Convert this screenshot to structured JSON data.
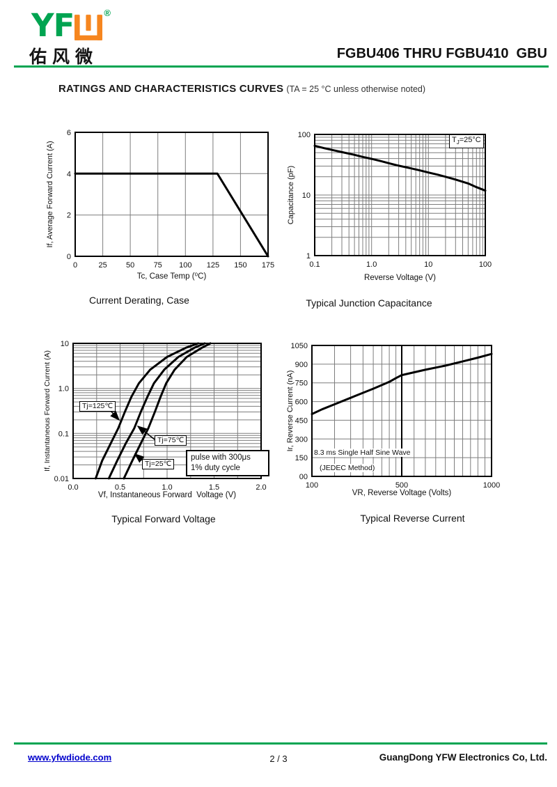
{
  "header": {
    "logo_letters": "YF",
    "registered": "®",
    "company_cn": "佑风微",
    "title": "FGBU406 THRU FGBU410  GBU"
  },
  "section": {
    "heading": "RATINGS AND CHARACTERISTICS CURVES",
    "condition": "(TA = 25 °C unless otherwise noted)"
  },
  "colors": {
    "brand_green": "#00A451",
    "brand_orange": "#F6861F",
    "link_blue": "#0000CC",
    "ink": "#111111",
    "grid": "#7d7d7d"
  },
  "chart_data": [
    {
      "type": "line",
      "title": "Current Derating, Case",
      "xlabel": "Tc, Case Temp (⁰C)",
      "ylabel": "If, Average Forward Current (A)",
      "xscale": "linear",
      "yscale": "linear",
      "xlim": [
        0,
        175
      ],
      "ylim": [
        0,
        6
      ],
      "xticks": [
        {
          "v": 0,
          "l": "0"
        },
        {
          "v": 25,
          "l": "25"
        },
        {
          "v": 50,
          "l": "50"
        },
        {
          "v": 75,
          "l": "75"
        },
        {
          "v": 100,
          "l": "100"
        },
        {
          "v": 125,
          "l": "125"
        },
        {
          "v": 150,
          "l": "150"
        },
        {
          "v": 175,
          "l": "175"
        }
      ],
      "yticks": [
        {
          "v": 0,
          "l": "0"
        },
        {
          "v": 2,
          "l": "2"
        },
        {
          "v": 4,
          "l": "4"
        },
        {
          "v": 6,
          "l": "6"
        }
      ],
      "series": [
        {
          "name": "If max vs Tc",
          "points": [
            [
              0,
              4
            ],
            [
              129,
              4
            ],
            [
              175,
              0
            ]
          ]
        }
      ]
    },
    {
      "type": "line",
      "title": "Typical Junction Capacitance",
      "xlabel": "Reverse Voltage (V)",
      "ylabel": "Capacitance (pF)",
      "xscale": "log",
      "yscale": "log",
      "xlim": [
        0.1,
        100
      ],
      "ylim": [
        1,
        100
      ],
      "legend": {
        "t": "T",
        "sub": "J",
        "rest": "=25°C"
      },
      "xticks": [
        {
          "v": 0.1,
          "l": "0.1"
        },
        {
          "v": 1,
          "l": "1.0"
        },
        {
          "v": 10,
          "l": "10"
        },
        {
          "v": 100,
          "l": "100"
        }
      ],
      "yticks": [
        {
          "v": 1,
          "l": "1"
        },
        {
          "v": 10,
          "l": "10"
        },
        {
          "v": 100,
          "l": "100"
        }
      ],
      "series": [
        {
          "name": "Cj vs VR",
          "points": [
            [
              0.1,
              65
            ],
            [
              0.15,
              59
            ],
            [
              0.2,
              55.5
            ],
            [
              0.3,
              51
            ],
            [
              0.5,
              46
            ],
            [
              0.7,
              42.5
            ],
            [
              1,
              39.5
            ],
            [
              1.5,
              36
            ],
            [
              2,
              33.5
            ],
            [
              3,
              30.5
            ],
            [
              5,
              27.5
            ],
            [
              7,
              25.5
            ],
            [
              10,
              23.5
            ],
            [
              15,
              21.5
            ],
            [
              20,
              20
            ],
            [
              30,
              18
            ],
            [
              50,
              15.5
            ],
            [
              70,
              13.5
            ],
            [
              100,
              11.8
            ]
          ]
        }
      ]
    },
    {
      "type": "line",
      "title": "Typical Forward Voltage",
      "xlabel": "Vf, Instantaneous Forward  Voltage (V)",
      "ylabel": "If, Instantaneous Forward Current (A)",
      "xscale": "linear",
      "yscale": "log",
      "xlim": [
        0,
        2
      ],
      "ylim": [
        0.01,
        10
      ],
      "curve_labels": [
        "Tj=125℃",
        "Tj=75℃",
        "Tj=25℃"
      ],
      "note_lines": [
        "pulse with 300μs",
        "1% duty cycle"
      ],
      "xticks": [
        {
          "v": 0,
          "l": "0.0"
        },
        {
          "v": 0.5,
          "l": "0.5"
        },
        {
          "v": 1,
          "l": "1.0"
        },
        {
          "v": 1.5,
          "l": "1.5"
        },
        {
          "v": 2,
          "l": "2.0"
        }
      ],
      "yticks": [
        {
          "v": 0.01,
          "l": "0.01"
        },
        {
          "v": 0.1,
          "l": "0.1"
        },
        {
          "v": 1,
          "l": "1.0"
        },
        {
          "v": 10,
          "l": "10"
        }
      ],
      "series": [
        {
          "name": "Tj=125℃",
          "points": [
            [
              0.24,
              0.01
            ],
            [
              0.31,
              0.025
            ],
            [
              0.4,
              0.06
            ],
            [
              0.48,
              0.13
            ],
            [
              0.55,
              0.3
            ],
            [
              0.62,
              0.65
            ],
            [
              0.7,
              1.3
            ],
            [
              0.82,
              2.6
            ],
            [
              1.0,
              5
            ],
            [
              1.2,
              8
            ],
            [
              1.33,
              10
            ]
          ]
        },
        {
          "name": "Tj=75℃",
          "points": [
            [
              0.38,
              0.01
            ],
            [
              0.47,
              0.025
            ],
            [
              0.56,
              0.06
            ],
            [
              0.65,
              0.13
            ],
            [
              0.72,
              0.3
            ],
            [
              0.79,
              0.65
            ],
            [
              0.86,
              1.3
            ],
            [
              0.97,
              2.6
            ],
            [
              1.12,
              5
            ],
            [
              1.29,
              8
            ],
            [
              1.4,
              10
            ]
          ]
        },
        {
          "name": "Tj=25℃",
          "points": [
            [
              0.54,
              0.01
            ],
            [
              0.63,
              0.025
            ],
            [
              0.72,
              0.06
            ],
            [
              0.8,
              0.13
            ],
            [
              0.87,
              0.3
            ],
            [
              0.93,
              0.65
            ],
            [
              0.99,
              1.3
            ],
            [
              1.08,
              2.6
            ],
            [
              1.21,
              5
            ],
            [
              1.37,
              8
            ],
            [
              1.46,
              10
            ]
          ]
        }
      ]
    },
    {
      "type": "line",
      "title": "Typical Reverse Current",
      "xlabel": "VR, Reverse Voltage (Volts)",
      "ylabel": "Ir, Reverse Current (nA)",
      "xscale": "log-segmented",
      "yscale": "linear",
      "xlim": [
        100,
        1000
      ],
      "ylim": [
        0,
        1050
      ],
      "note_lines": [
        "8.3 ms Single Half Sine Wave",
        "(JEDEC Method)"
      ],
      "xticks": [
        {
          "v": 100,
          "l": "100"
        },
        {
          "v": 500,
          "l": "500"
        },
        {
          "v": 1000,
          "l": "1000"
        }
      ],
      "yticks": [
        {
          "v": 0,
          "l": "00"
        },
        {
          "v": 150,
          "l": "150"
        },
        {
          "v": 300,
          "l": "300"
        },
        {
          "v": 450,
          "l": "450"
        },
        {
          "v": 600,
          "l": "600"
        },
        {
          "v": 750,
          "l": "750"
        },
        {
          "v": 900,
          "l": "900"
        },
        {
          "v": 1050,
          "l": "1050"
        }
      ],
      "series": [
        {
          "name": "Ir vs VR",
          "points": [
            [
              100,
              500
            ],
            [
              120,
              538
            ],
            [
              150,
              578
            ],
            [
              200,
              630
            ],
            [
              250,
              670
            ],
            [
              300,
              703
            ],
            [
              350,
              732
            ],
            [
              400,
              758
            ],
            [
              450,
              788
            ],
            [
              500,
              812
            ],
            [
              600,
              855
            ],
            [
              700,
              888
            ],
            [
              800,
              922
            ],
            [
              900,
              952
            ],
            [
              1000,
              982
            ]
          ]
        }
      ]
    }
  ],
  "footer": {
    "website": "www.yfwdiode.com",
    "page": "2 / 3",
    "company": "GuangDong YFW Electronics Co, Ltd."
  }
}
